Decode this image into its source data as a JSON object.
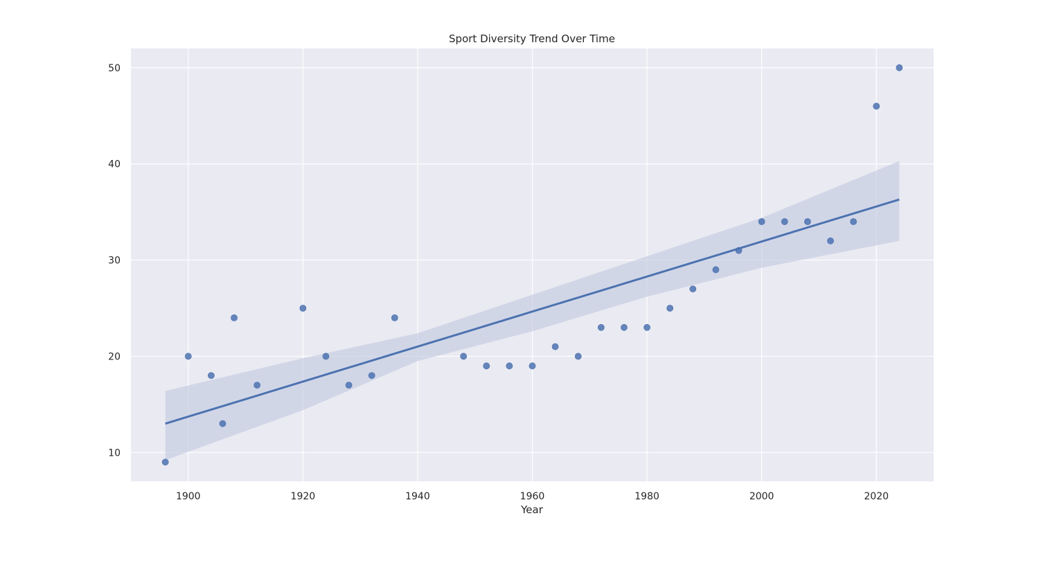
{
  "chart_data": {
    "type": "scatter",
    "title": "Sport Diversity Trend Over Time",
    "xlabel": "Year",
    "ylabel": "",
    "xlim": [
      1890,
      2030
    ],
    "ylim": [
      7,
      52
    ],
    "xticks": [
      1900,
      1920,
      1940,
      1960,
      1980,
      2000,
      2020
    ],
    "yticks": [
      10,
      20,
      30,
      40,
      50
    ],
    "grid": true,
    "colors": {
      "background": "#eaeaf2",
      "grid": "#ffffff",
      "points": "#4c72b0",
      "line": "#4c72b0",
      "band": "#c3cbe0"
    },
    "series": [
      {
        "x": [
          1896,
          1900,
          1904,
          1906,
          1908,
          1912,
          1920,
          1924,
          1928,
          1932,
          1936,
          1948,
          1952,
          1956,
          1960,
          1964,
          1968,
          1972,
          1976,
          1980,
          1984,
          1988,
          1992,
          1996,
          2000,
          2004,
          2008,
          2012,
          2016,
          2020,
          2024
        ],
        "y": [
          9,
          20,
          18,
          13,
          24,
          17,
          25,
          20,
          17,
          18,
          24,
          20,
          19,
          19,
          19,
          21,
          20,
          23,
          23,
          23,
          25,
          27,
          29,
          31,
          34,
          34,
          34,
          32,
          34,
          46,
          50
        ]
      }
    ],
    "regression": {
      "x": [
        1896,
        2024
      ],
      "y": [
        13.0,
        36.3
      ]
    },
    "confidence_band": {
      "x": [
        1896,
        1920,
        1940,
        1960,
        1980,
        2000,
        2024
      ],
      "upper": [
        16.4,
        19.8,
        22.4,
        26.4,
        30.4,
        34.4,
        40.3
      ],
      "lower": [
        9.2,
        14.4,
        19.5,
        22.6,
        26.2,
        29.2,
        32.0
      ]
    }
  }
}
